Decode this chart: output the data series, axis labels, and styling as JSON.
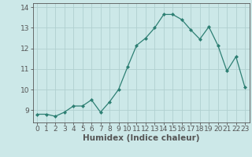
{
  "x": [
    0,
    1,
    2,
    3,
    4,
    5,
    6,
    7,
    8,
    9,
    10,
    11,
    12,
    13,
    14,
    15,
    16,
    17,
    18,
    19,
    20,
    21,
    22,
    23
  ],
  "y": [
    8.8,
    8.8,
    8.7,
    8.9,
    9.2,
    9.2,
    9.5,
    8.9,
    9.4,
    10.0,
    11.1,
    12.15,
    12.5,
    13.0,
    13.65,
    13.65,
    13.4,
    12.9,
    12.45,
    13.05,
    12.15,
    10.9,
    11.6,
    10.1
  ],
  "line_color": "#2d7f73",
  "marker": "D",
  "marker_size": 2.0,
  "bg_color": "#cce8e8",
  "grid_color": "#b0d0d0",
  "axis_color": "#2d7f73",
  "spine_color": "#555555",
  "xlabel": "Humidex (Indice chaleur)",
  "xlim": [
    -0.5,
    23.5
  ],
  "ylim": [
    8.4,
    14.2
  ],
  "yticks": [
    9,
    10,
    11,
    12,
    13,
    14
  ],
  "xticks": [
    0,
    1,
    2,
    3,
    4,
    5,
    6,
    7,
    8,
    9,
    10,
    11,
    12,
    13,
    14,
    15,
    16,
    17,
    18,
    19,
    20,
    21,
    22,
    23
  ],
  "xlabel_fontsize": 7.5,
  "tick_fontsize": 6.5
}
